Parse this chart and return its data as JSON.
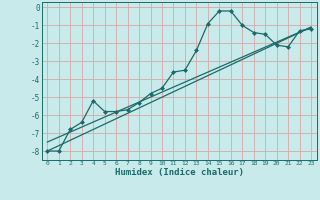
{
  "title": "",
  "xlabel": "Humidex (Indice chaleur)",
  "bg_color": "#c8eaea",
  "grid_color": "#d8a8a8",
  "line_color": "#1a6b6b",
  "xlim": [
    -0.5,
    23.5
  ],
  "ylim": [
    -8.5,
    0.3
  ],
  "xticks": [
    0,
    1,
    2,
    3,
    4,
    5,
    6,
    7,
    8,
    9,
    10,
    11,
    12,
    13,
    14,
    15,
    16,
    17,
    18,
    19,
    20,
    21,
    22,
    23
  ],
  "yticks": [
    0,
    -1,
    -2,
    -3,
    -4,
    -5,
    -6,
    -7,
    -8
  ],
  "series1_x": [
    0,
    1,
    2,
    3,
    4,
    5,
    6,
    7,
    8,
    9,
    10,
    11,
    12,
    13,
    14,
    15,
    16,
    17,
    18,
    19,
    20,
    21,
    22,
    23
  ],
  "series1_y": [
    -8.0,
    -8.0,
    -6.8,
    -6.4,
    -5.2,
    -5.8,
    -5.8,
    -5.7,
    -5.3,
    -4.8,
    -4.5,
    -3.6,
    -3.5,
    -2.4,
    -0.9,
    -0.2,
    -0.2,
    -1.0,
    -1.4,
    -1.5,
    -2.1,
    -2.2,
    -1.3,
    -1.2
  ],
  "series2_x": [
    0,
    23
  ],
  "series2_y": [
    -8.0,
    -1.1
  ],
  "series3_x": [
    0,
    23
  ],
  "series3_y": [
    -7.5,
    -1.1
  ]
}
